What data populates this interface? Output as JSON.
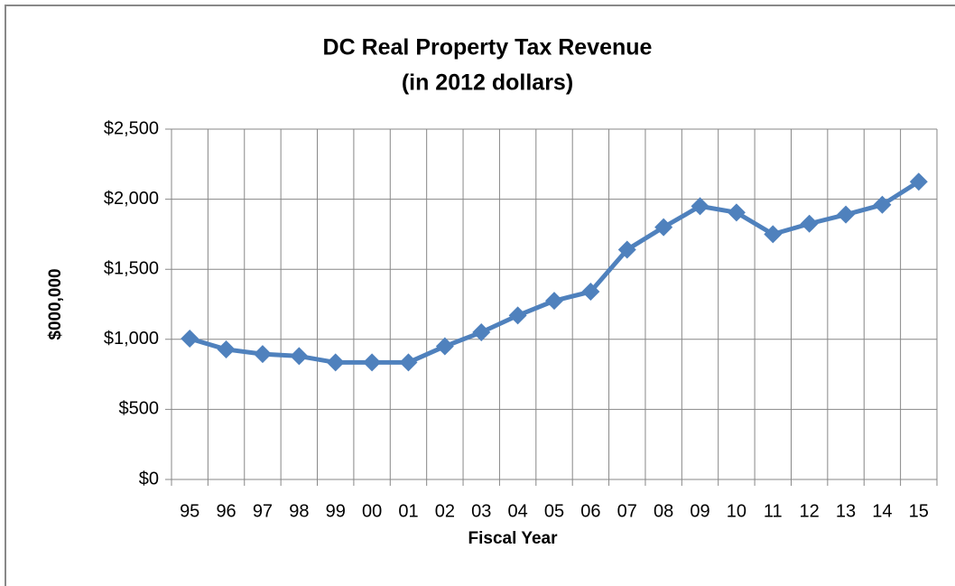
{
  "chart_data": {
    "type": "line",
    "title": "DC Real Property Tax Revenue",
    "subtitle": "(in 2012 dollars)",
    "y_axis_label": "$000,000",
    "x_axis_label": "Fiscal Year",
    "categories": [
      "95",
      "96",
      "97",
      "98",
      "99",
      "00",
      "01",
      "02",
      "03",
      "04",
      "05",
      "06",
      "07",
      "08",
      "09",
      "10",
      "11",
      "12",
      "13",
      "14",
      "15"
    ],
    "series": [
      {
        "name": "DC Real Property Tax Revenue",
        "color": "#4f81bd",
        "values": [
          1005,
          928,
          895,
          880,
          835,
          835,
          835,
          950,
          1050,
          1170,
          1275,
          1340,
          1640,
          1800,
          1950,
          1905,
          1750,
          1825,
          1890,
          1960,
          2125
        ]
      }
    ],
    "ylim": [
      0,
      2500
    ],
    "yticks": [
      {
        "value": 0,
        "label": "$0"
      },
      {
        "value": 500,
        "label": "$500"
      },
      {
        "value": 1000,
        "label": "$1,000"
      },
      {
        "value": 1500,
        "label": "$1,500"
      },
      {
        "value": 2000,
        "label": "$2,000"
      },
      {
        "value": 2500,
        "label": "$2,500"
      }
    ],
    "grid": true
  }
}
